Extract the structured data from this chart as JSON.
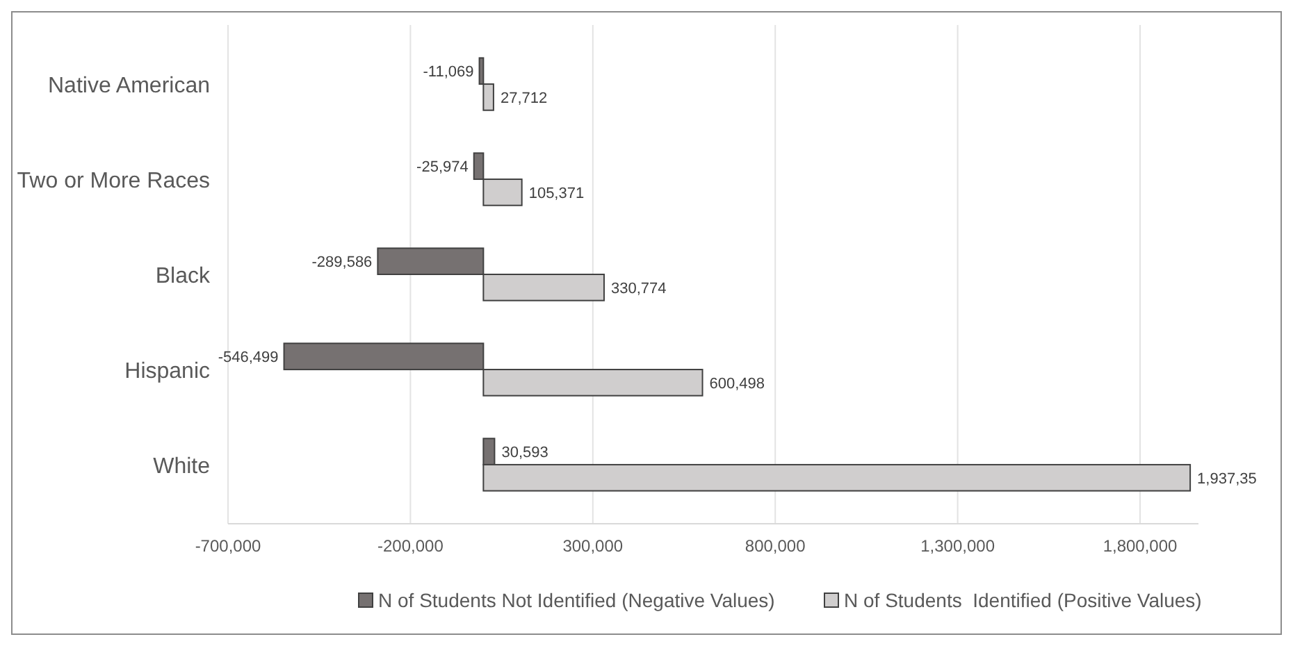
{
  "chart_data": {
    "type": "bar",
    "orientation": "horizontal",
    "categories": [
      "Native American",
      "Two or More Races",
      "Black",
      "Hispanic",
      "White"
    ],
    "series": [
      {
        "name": "N of Students Not Identified (Negative Values)",
        "color": "#767171",
        "values": [
          -11069,
          -25974,
          -289586,
          -546499,
          30593
        ],
        "value_labels": [
          "-11,069",
          "-25,974",
          "-289,586",
          "-546,499",
          "30,593"
        ]
      },
      {
        "name": "N of Students  Identified (Positive Values)",
        "color": "#d0cece",
        "values": [
          27712,
          105371,
          330774,
          600498,
          1937350
        ],
        "value_labels": [
          "27,712",
          "105,371",
          "330,774",
          "600,498",
          "1,937,35"
        ]
      }
    ],
    "xlim": [
      -700000,
      1960000
    ],
    "xticks": [
      {
        "value": -700000,
        "label": "-700,000"
      },
      {
        "value": -200000,
        "label": "-200,000"
      },
      {
        "value": 300000,
        "label": "300,000"
      },
      {
        "value": 800000,
        "label": "800,000"
      },
      {
        "value": 1300000,
        "label": "1,300,000"
      },
      {
        "value": 1800000,
        "label": "1,800,000"
      }
    ],
    "grid": "x",
    "legend": "bottom"
  }
}
